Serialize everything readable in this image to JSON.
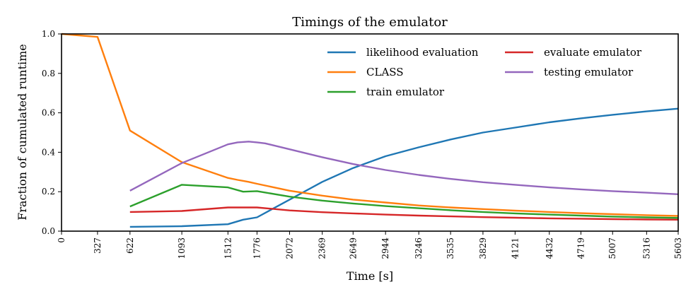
{
  "chart_data": {
    "type": "line",
    "title": "Timings of the emulator",
    "xlabel": "Time [s]",
    "ylabel": "Fraction of cumulated runtime",
    "xlim": [
      0,
      5603
    ],
    "ylim": [
      0,
      1.0
    ],
    "x_ticks": [
      0,
      327,
      622,
      1093,
      1512,
      1776,
      2072,
      2369,
      2649,
      2944,
      3246,
      3535,
      3829,
      4121,
      4432,
      4719,
      5007,
      5316,
      5603
    ],
    "y_ticks": [
      0.0,
      0.2,
      0.4,
      0.6,
      0.8,
      1.0
    ],
    "y_tick_labels": [
      "0.0",
      "0.2",
      "0.4",
      "0.6",
      "0.8",
      "1.0"
    ],
    "legend_position": "top-right",
    "legend_columns": 2,
    "series": [
      {
        "name": "likelihood evaluation",
        "color": "#1f77b4",
        "x": [
          622,
          1093,
          1512,
          1650,
          1776,
          2072,
          2369,
          2649,
          2944,
          3246,
          3535,
          3829,
          4121,
          4432,
          4719,
          5007,
          5316,
          5603
        ],
        "y": [
          0.022,
          0.025,
          0.035,
          0.058,
          0.07,
          0.16,
          0.25,
          0.32,
          0.38,
          0.425,
          0.465,
          0.5,
          0.525,
          0.552,
          0.572,
          0.59,
          0.607,
          0.621
        ]
      },
      {
        "name": "CLASS",
        "color": "#ff7f0e",
        "x": [
          0,
          327,
          622,
          1093,
          1512,
          1600,
          1700,
          1776,
          2072,
          2369,
          2649,
          2944,
          3246,
          3535,
          3829,
          4121,
          4432,
          4719,
          5007,
          5316,
          5603
        ],
        "y": [
          1.0,
          0.985,
          0.51,
          0.35,
          0.27,
          0.26,
          0.25,
          0.24,
          0.205,
          0.18,
          0.16,
          0.145,
          0.13,
          0.12,
          0.112,
          0.104,
          0.097,
          0.091,
          0.086,
          0.081,
          0.077
        ]
      },
      {
        "name": "train emulator",
        "color": "#2ca02c",
        "x": [
          622,
          1093,
          1512,
          1650,
          1776,
          2072,
          2369,
          2649,
          2944,
          3246,
          3535,
          3829,
          4121,
          4432,
          4719,
          5007,
          5316,
          5603
        ],
        "y": [
          0.125,
          0.235,
          0.222,
          0.2,
          0.203,
          0.175,
          0.155,
          0.14,
          0.127,
          0.116,
          0.106,
          0.097,
          0.09,
          0.084,
          0.079,
          0.074,
          0.07,
          0.067
        ]
      },
      {
        "name": "evaluate emulator",
        "color": "#d62728",
        "x": [
          622,
          1093,
          1512,
          1776,
          2072,
          2369,
          2649,
          2944,
          3246,
          3535,
          3829,
          4121,
          4432,
          4719,
          5007,
          5316,
          5603
        ],
        "y": [
          0.097,
          0.102,
          0.12,
          0.12,
          0.105,
          0.096,
          0.09,
          0.084,
          0.079,
          0.075,
          0.071,
          0.068,
          0.065,
          0.063,
          0.061,
          0.059,
          0.058
        ]
      },
      {
        "name": "testing emulator",
        "color": "#9467bd",
        "x": [
          622,
          1093,
          1512,
          1600,
          1700,
          1776,
          1850,
          2072,
          2369,
          2649,
          2944,
          3246,
          3535,
          3829,
          4121,
          4432,
          4719,
          5007,
          5316,
          5603
        ],
        "y": [
          0.205,
          0.345,
          0.44,
          0.45,
          0.454,
          0.45,
          0.445,
          0.415,
          0.375,
          0.34,
          0.31,
          0.285,
          0.265,
          0.248,
          0.235,
          0.222,
          0.212,
          0.203,
          0.195,
          0.187
        ]
      }
    ]
  }
}
